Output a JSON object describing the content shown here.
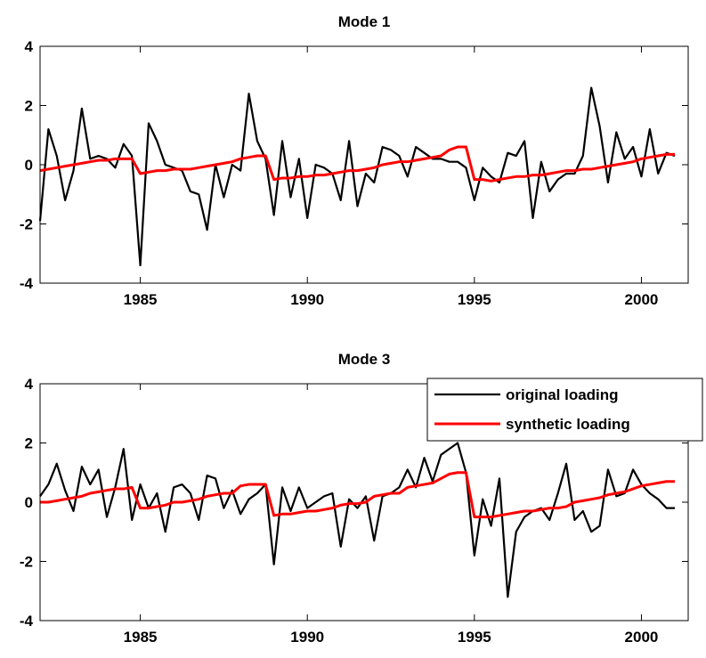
{
  "chart_data": [
    {
      "type": "line",
      "title": "Mode 1",
      "x": [
        1982,
        1982.25,
        1982.5,
        1982.75,
        1983,
        1983.25,
        1983.5,
        1983.75,
        1984,
        1984.25,
        1984.5,
        1984.75,
        1985,
        1985.25,
        1985.5,
        1985.75,
        1986,
        1986.25,
        1986.5,
        1986.75,
        1987,
        1987.25,
        1987.5,
        1987.75,
        1988,
        1988.25,
        1988.5,
        1988.75,
        1989,
        1989.25,
        1989.5,
        1989.75,
        1990,
        1990.25,
        1990.5,
        1990.75,
        1991,
        1991.25,
        1991.5,
        1991.75,
        1992,
        1992.25,
        1992.5,
        1992.75,
        1993,
        1993.25,
        1993.5,
        1993.75,
        1994,
        1994.25,
        1994.5,
        1994.75,
        1995,
        1995.25,
        1995.5,
        1995.75,
        1996,
        1996.25,
        1996.5,
        1996.75,
        1997,
        1997.25,
        1997.5,
        1997.75,
        1998,
        1998.25,
        1998.5,
        1998.75,
        1999,
        1999.25,
        1999.5,
        1999.75,
        2000,
        2000.25,
        2000.5,
        2000.75,
        2001
      ],
      "series": [
        {
          "name": "original loading",
          "color": "#000000",
          "values": [
            -1.9,
            1.2,
            0.3,
            -1.2,
            -0.2,
            1.9,
            0.2,
            0.3,
            0.2,
            -0.1,
            0.7,
            0.3,
            -3.4,
            1.4,
            0.8,
            0.0,
            -0.1,
            -0.2,
            -0.9,
            -1.0,
            -2.2,
            0.0,
            -1.1,
            0.0,
            -0.2,
            2.4,
            0.8,
            0.2,
            -1.7,
            0.8,
            -1.1,
            0.2,
            -1.8,
            0.0,
            -0.1,
            -0.3,
            -1.2,
            0.8,
            -1.4,
            -0.3,
            -0.6,
            0.6,
            0.5,
            0.3,
            -0.4,
            0.6,
            0.4,
            0.2,
            0.2,
            0.1,
            0.1,
            -0.1,
            -1.2,
            -0.1,
            -0.4,
            -0.6,
            0.4,
            0.3,
            0.8,
            -1.8,
            0.1,
            -0.9,
            -0.5,
            -0.3,
            -0.3,
            0.3,
            2.6,
            1.3,
            -0.6,
            1.1,
            0.2,
            0.6,
            -0.4,
            1.2,
            -0.3,
            0.4,
            0.3
          ]
        },
        {
          "name": "synthetic loading",
          "color": "#ff0000",
          "values": [
            -0.2,
            -0.15,
            -0.1,
            -0.05,
            0.0,
            0.05,
            0.1,
            0.15,
            0.15,
            0.2,
            0.2,
            0.2,
            -0.3,
            -0.25,
            -0.2,
            -0.2,
            -0.15,
            -0.15,
            -0.15,
            -0.1,
            -0.05,
            0.0,
            0.05,
            0.1,
            0.2,
            0.25,
            0.3,
            0.3,
            -0.5,
            -0.45,
            -0.45,
            -0.4,
            -0.4,
            -0.35,
            -0.35,
            -0.3,
            -0.25,
            -0.2,
            -0.2,
            -0.15,
            -0.1,
            0.0,
            0.05,
            0.1,
            0.1,
            0.15,
            0.2,
            0.25,
            0.3,
            0.5,
            0.6,
            0.6,
            -0.5,
            -0.5,
            -0.55,
            -0.5,
            -0.45,
            -0.4,
            -0.4,
            -0.35,
            -0.35,
            -0.3,
            -0.25,
            -0.2,
            -0.2,
            -0.15,
            -0.15,
            -0.1,
            -0.05,
            0.0,
            0.05,
            0.1,
            0.2,
            0.25,
            0.3,
            0.35,
            0.35
          ]
        }
      ],
      "xlim": [
        1982,
        2001.4
      ],
      "xticks": [
        1985,
        1990,
        1995,
        2000
      ],
      "ylim": [
        -4,
        4
      ],
      "yticks": [
        -4,
        -2,
        0,
        2,
        4
      ],
      "legend": false
    },
    {
      "type": "line",
      "title": "Mode 3",
      "x": [
        1982,
        1982.25,
        1982.5,
        1982.75,
        1983,
        1983.25,
        1983.5,
        1983.75,
        1984,
        1984.25,
        1984.5,
        1984.75,
        1985,
        1985.25,
        1985.5,
        1985.75,
        1986,
        1986.25,
        1986.5,
        1986.75,
        1987,
        1987.25,
        1987.5,
        1987.75,
        1988,
        1988.25,
        1988.5,
        1988.75,
        1989,
        1989.25,
        1989.5,
        1989.75,
        1990,
        1990.25,
        1990.5,
        1990.75,
        1991,
        1991.25,
        1991.5,
        1991.75,
        1992,
        1992.25,
        1992.5,
        1992.75,
        1993,
        1993.25,
        1993.5,
        1993.75,
        1994,
        1994.25,
        1994.5,
        1994.75,
        1995,
        1995.25,
        1995.5,
        1995.75,
        1996,
        1996.25,
        1996.5,
        1996.75,
        1997,
        1997.25,
        1997.5,
        1997.75,
        1998,
        1998.25,
        1998.5,
        1998.75,
        1999,
        1999.25,
        1999.5,
        1999.75,
        2000,
        2000.25,
        2000.5,
        2000.75,
        2001
      ],
      "series": [
        {
          "name": "original loading",
          "color": "#000000",
          "values": [
            0.2,
            0.6,
            1.3,
            0.4,
            -0.3,
            1.2,
            0.6,
            1.1,
            -0.5,
            0.5,
            1.8,
            -0.6,
            0.6,
            -0.2,
            0.3,
            -1.0,
            0.5,
            0.6,
            0.3,
            -0.6,
            0.9,
            0.8,
            -0.2,
            0.4,
            -0.4,
            0.1,
            0.3,
            0.6,
            -2.1,
            0.5,
            -0.3,
            0.5,
            -0.2,
            0.0,
            0.2,
            0.3,
            -1.5,
            0.1,
            -0.2,
            0.2,
            -1.3,
            0.2,
            0.3,
            0.5,
            1.1,
            0.5,
            1.5,
            0.7,
            1.6,
            1.8,
            2.0,
            1.0,
            -1.8,
            0.1,
            -0.8,
            0.8,
            -3.2,
            -1.0,
            -0.5,
            -0.3,
            -0.2,
            -0.6,
            0.3,
            1.3,
            -0.6,
            -0.3,
            -1.0,
            -0.8,
            1.1,
            0.2,
            0.3,
            1.1,
            0.6,
            0.3,
            0.1,
            -0.2,
            -0.2
          ]
        },
        {
          "name": "synthetic loading",
          "color": "#ff0000",
          "values": [
            0.0,
            0.0,
            0.05,
            0.1,
            0.15,
            0.2,
            0.3,
            0.35,
            0.4,
            0.45,
            0.45,
            0.5,
            -0.2,
            -0.2,
            -0.15,
            -0.1,
            0.0,
            0.0,
            0.05,
            0.1,
            0.2,
            0.25,
            0.3,
            0.3,
            0.55,
            0.6,
            0.6,
            0.6,
            -0.45,
            -0.4,
            -0.4,
            -0.35,
            -0.3,
            -0.3,
            -0.25,
            -0.2,
            -0.1,
            -0.05,
            -0.05,
            0.0,
            0.2,
            0.25,
            0.3,
            0.3,
            0.5,
            0.55,
            0.6,
            0.65,
            0.8,
            0.95,
            1.0,
            1.0,
            -0.5,
            -0.5,
            -0.5,
            -0.45,
            -0.4,
            -0.35,
            -0.3,
            -0.3,
            -0.25,
            -0.2,
            -0.2,
            -0.15,
            0.0,
            0.05,
            0.1,
            0.15,
            0.25,
            0.3,
            0.35,
            0.45,
            0.55,
            0.6,
            0.65,
            0.7,
            0.7
          ]
        }
      ],
      "xlim": [
        1982,
        2001.4
      ],
      "xticks": [
        1985,
        1990,
        1995,
        2000
      ],
      "ylim": [
        -4,
        4
      ],
      "yticks": [
        -4,
        -2,
        0,
        2,
        4
      ],
      "legend": "upper right"
    }
  ]
}
